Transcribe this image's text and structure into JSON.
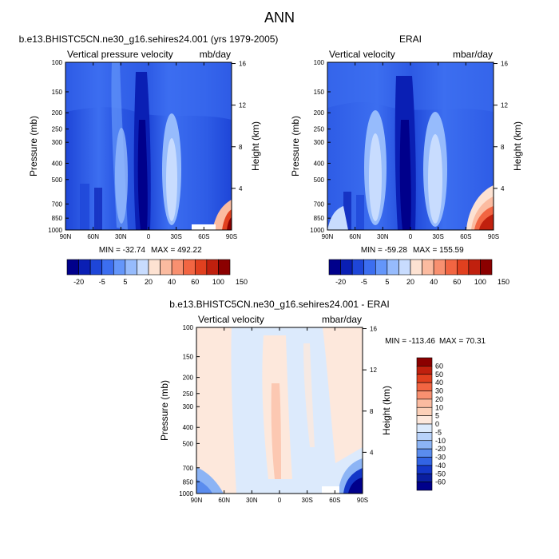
{
  "figure": {
    "title": "ANN"
  },
  "chart_data": [
    {
      "type": "heatmap",
      "panel_id": "model",
      "title": "b.e13.BHISTC5CN.ne30_g16.sehires24.001 (yrs 1979-2005)",
      "left_label": "Vertical pressure velocity",
      "right_label": "mb/day",
      "xlabel": "",
      "ylabel": "Pressure (mb)",
      "ylabel_right": "Height (km)",
      "x_ticks": [
        "90N",
        "60N",
        "30N",
        "0",
        "30S",
        "60S",
        "90S"
      ],
      "y_ticks": [
        100,
        150,
        200,
        250,
        300,
        400,
        500,
        700,
        850,
        1000
      ],
      "y_ticks_right": [
        16,
        12,
        8,
        4
      ],
      "ylim": [
        1000,
        100
      ],
      "y_scale": "log",
      "min_label": "MIN = -32.74",
      "max_label": "MAX = 492.22",
      "colorbar": {
        "orientation": "horizontal",
        "labels": [
          "-20",
          "-5",
          "5",
          "20",
          "40",
          "60",
          "100",
          "150"
        ],
        "colors": [
          "#00008b",
          "#0a1fb4",
          "#1e46d8",
          "#3c6ef0",
          "#6496fa",
          "#96bbfc",
          "#c8dcfe",
          "#fde2d2",
          "#fbbba0",
          "#f89070",
          "#f26542",
          "#e1401f",
          "#c0200e",
          "#8b0000"
        ]
      }
    },
    {
      "type": "heatmap",
      "panel_id": "obs",
      "title": "ERAI",
      "left_label": "Vertical velocity",
      "right_label": "mbar/day",
      "xlabel": "",
      "ylabel": "Pressure (mb)",
      "ylabel_right": "Height (km)",
      "x_ticks": [
        "90N",
        "60N",
        "30N",
        "0",
        "30S",
        "60S",
        "90S"
      ],
      "y_ticks": [
        100,
        150,
        200,
        250,
        300,
        400,
        500,
        700,
        850,
        1000
      ],
      "y_ticks_right": [
        16,
        12,
        8,
        4
      ],
      "ylim": [
        1000,
        100
      ],
      "y_scale": "log",
      "min_label": "MIN = -59.28",
      "max_label": "MAX = 155.59",
      "colorbar": {
        "orientation": "horizontal",
        "labels": [
          "-20",
          "-5",
          "5",
          "20",
          "40",
          "60",
          "100",
          "150"
        ],
        "colors": [
          "#00008b",
          "#0a1fb4",
          "#1e46d8",
          "#3c6ef0",
          "#6496fa",
          "#96bbfc",
          "#c8dcfe",
          "#fde2d2",
          "#fbbba0",
          "#f89070",
          "#f26542",
          "#e1401f",
          "#c0200e",
          "#8b0000"
        ]
      }
    },
    {
      "type": "heatmap",
      "panel_id": "diff",
      "title": "b.e13.BHISTC5CN.ne30_g16.sehires24.001 - ERAI",
      "left_label": "Vertical velocity",
      "right_label": "mbar/day",
      "xlabel": "",
      "ylabel": "Pressure (mb)",
      "ylabel_right": "Height (km)",
      "x_ticks": [
        "90N",
        "60N",
        "30N",
        "0",
        "30S",
        "60S",
        "90S"
      ],
      "y_ticks": [
        100,
        150,
        200,
        250,
        300,
        400,
        500,
        700,
        850,
        1000
      ],
      "y_ticks_right": [
        16,
        12,
        8,
        4
      ],
      "ylim": [
        1000,
        100
      ],
      "y_scale": "log",
      "min_label": "MIN = -113.46",
      "max_label": "MAX =  70.31",
      "colorbar": {
        "orientation": "vertical",
        "labels": [
          "60",
          "50",
          "40",
          "30",
          "20",
          "10",
          "5",
          "0",
          "-5",
          "-10",
          "-20",
          "-30",
          "-40",
          "-50",
          "-60"
        ],
        "colors": [
          "#8b0000",
          "#c0200e",
          "#e1401f",
          "#f26542",
          "#f89070",
          "#fbbba0",
          "#fcd0b8",
          "#fde8dc",
          "#dceafc",
          "#b8d2fa",
          "#8cb4f5",
          "#5a8cee",
          "#3264e4",
          "#1437c8",
          "#0a1ea0",
          "#00008b"
        ]
      }
    }
  ]
}
